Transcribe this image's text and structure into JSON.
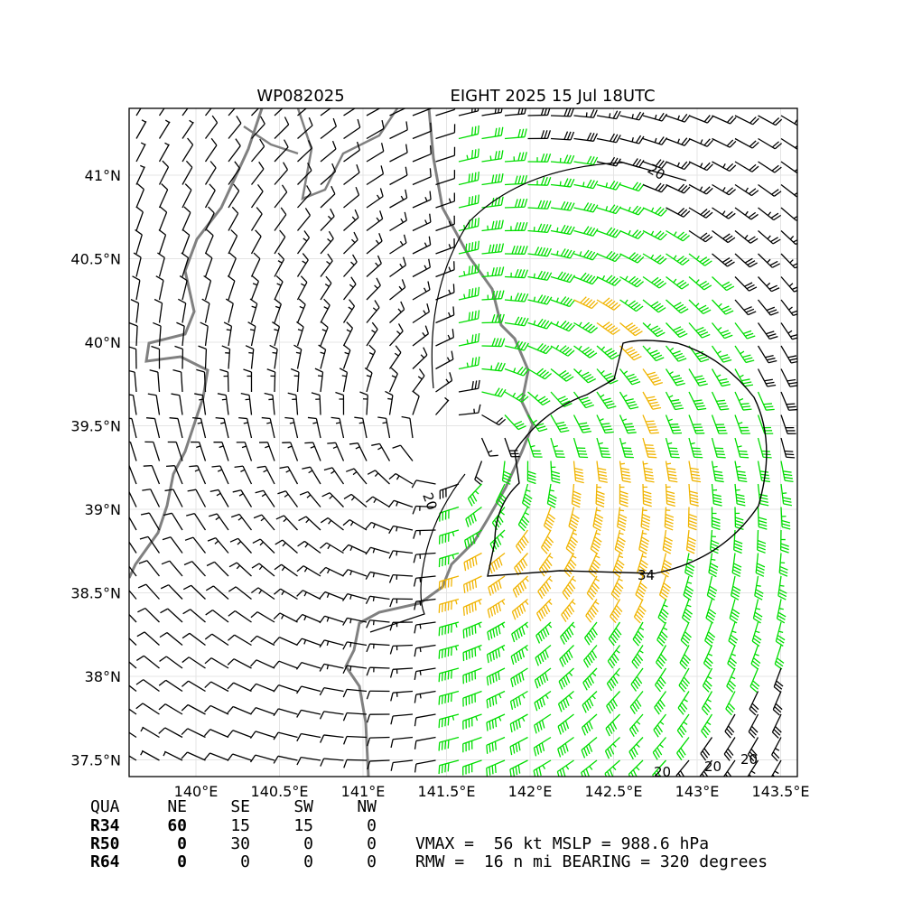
{
  "chart_data": {
    "type": "wind-barb-map",
    "title_left": "WP082025",
    "title_right": "EIGHT 2025 15 Jul 18UTC",
    "x_ticks": [
      "140°E",
      "140.5°E",
      "141°E",
      "141.5°E",
      "142°E",
      "142.5°E",
      "143°E",
      "143.5°E"
    ],
    "x_tick_values": [
      140.0,
      140.5,
      141.0,
      141.5,
      142.0,
      142.5,
      143.0,
      143.5
    ],
    "y_ticks": [
      "41°N",
      "40.5°N",
      "40°N",
      "39.5°N",
      "39°N",
      "38.5°N",
      "38°N",
      "37.5°N"
    ],
    "y_tick_values": [
      41.0,
      40.5,
      40.0,
      39.5,
      39.0,
      38.5,
      38.0,
      37.5
    ],
    "xlim": [
      139.6,
      143.6
    ],
    "ylim": [
      37.4,
      41.4
    ],
    "grid": true,
    "storm_center": {
      "lon": 141.55,
      "lat": 39.4
    },
    "contour_labels": [
      "20",
      "20",
      "34",
      "20",
      "20",
      "20"
    ],
    "barb_colors": {
      "below_34": "#000000",
      "r34": "#00dd00",
      "r50": "#f0b400",
      "r64": "#ff6600"
    },
    "quadrant_table": {
      "headers": [
        "QUA",
        "NE",
        "SE",
        "SW",
        "NW"
      ],
      "rows": [
        {
          "label": "R34",
          "values": [
            "60",
            "15",
            "15",
            "0"
          ]
        },
        {
          "label": "R50",
          "values": [
            "0",
            "30",
            "0",
            "0"
          ]
        },
        {
          "label": "R64",
          "values": [
            "0",
            "0",
            "0",
            "0"
          ]
        }
      ]
    },
    "info_line1": "VMAX =  56 kt MSLP = 988.6 hPa",
    "info_line2": "RMW =  16 n mi BEARING = 320 degrees"
  }
}
